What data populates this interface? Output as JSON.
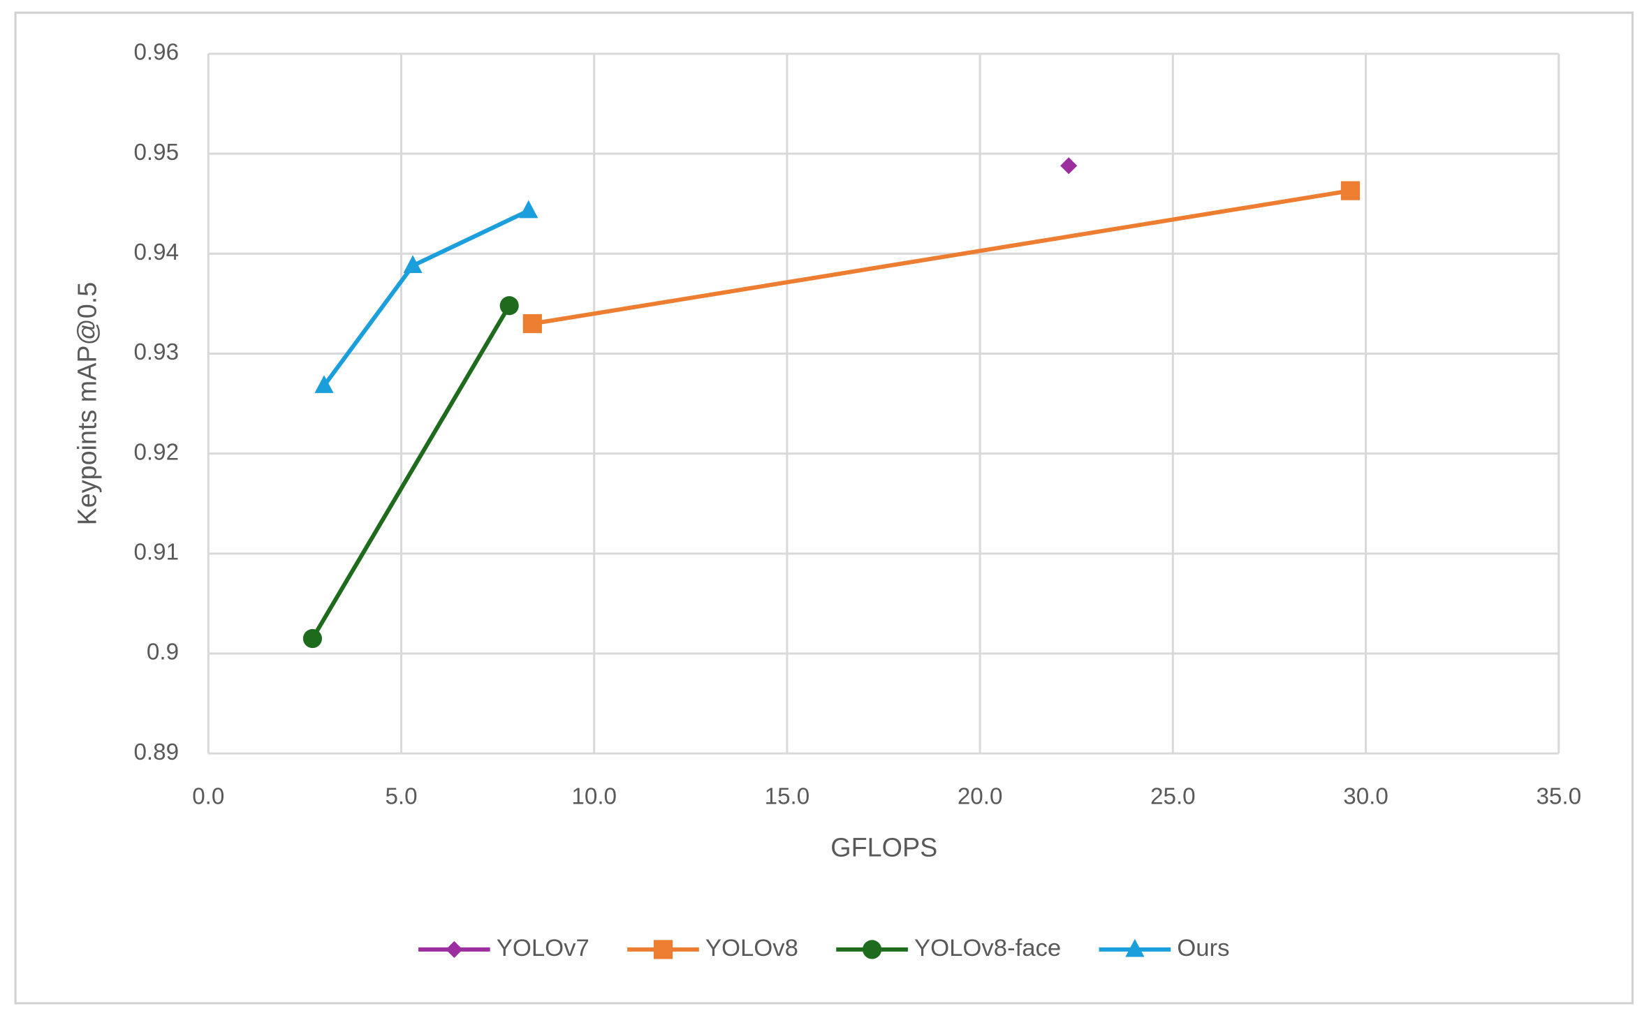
{
  "chart_data": {
    "type": "line",
    "x_label": "GFLOPS",
    "y_label": "Keypoints mAP@0.5",
    "xlim": [
      0,
      35
    ],
    "ylim": [
      0.89,
      0.96
    ],
    "xticks": [
      {
        "value": 0,
        "label": "0.0"
      },
      {
        "value": 5,
        "label": "5.0"
      },
      {
        "value": 10,
        "label": "10.0"
      },
      {
        "value": 15,
        "label": "15.0"
      },
      {
        "value": 20,
        "label": "20.0"
      },
      {
        "value": 25,
        "label": "25.0"
      },
      {
        "value": 30,
        "label": "30.0"
      },
      {
        "value": 35,
        "label": "35.0"
      }
    ],
    "yticks": [
      0.89,
      0.9,
      0.91,
      0.92,
      0.93,
      0.94,
      0.95,
      0.96
    ],
    "grid": true,
    "legend": "bottom",
    "series": [
      {
        "name": "YOLOv7",
        "color": "#9b2fa0",
        "marker": "diamond",
        "x": [
          22.3
        ],
        "values": [
          0.9488
        ]
      },
      {
        "name": "YOLOv8",
        "color": "#ed7d31",
        "marker": "square",
        "x": [
          8.4,
          29.6
        ],
        "values": [
          0.933,
          0.9463
        ]
      },
      {
        "name": "YOLOv8-face",
        "color": "#1e6b1e",
        "marker": "circle",
        "x": [
          2.7,
          7.8
        ],
        "values": [
          0.9015,
          0.9348
        ]
      },
      {
        "name": "Ours",
        "color": "#1a9fdc",
        "marker": "triangle",
        "x": [
          3.0,
          5.3,
          8.3
        ],
        "values": [
          0.9268,
          0.9388,
          0.9443
        ]
      }
    ]
  }
}
